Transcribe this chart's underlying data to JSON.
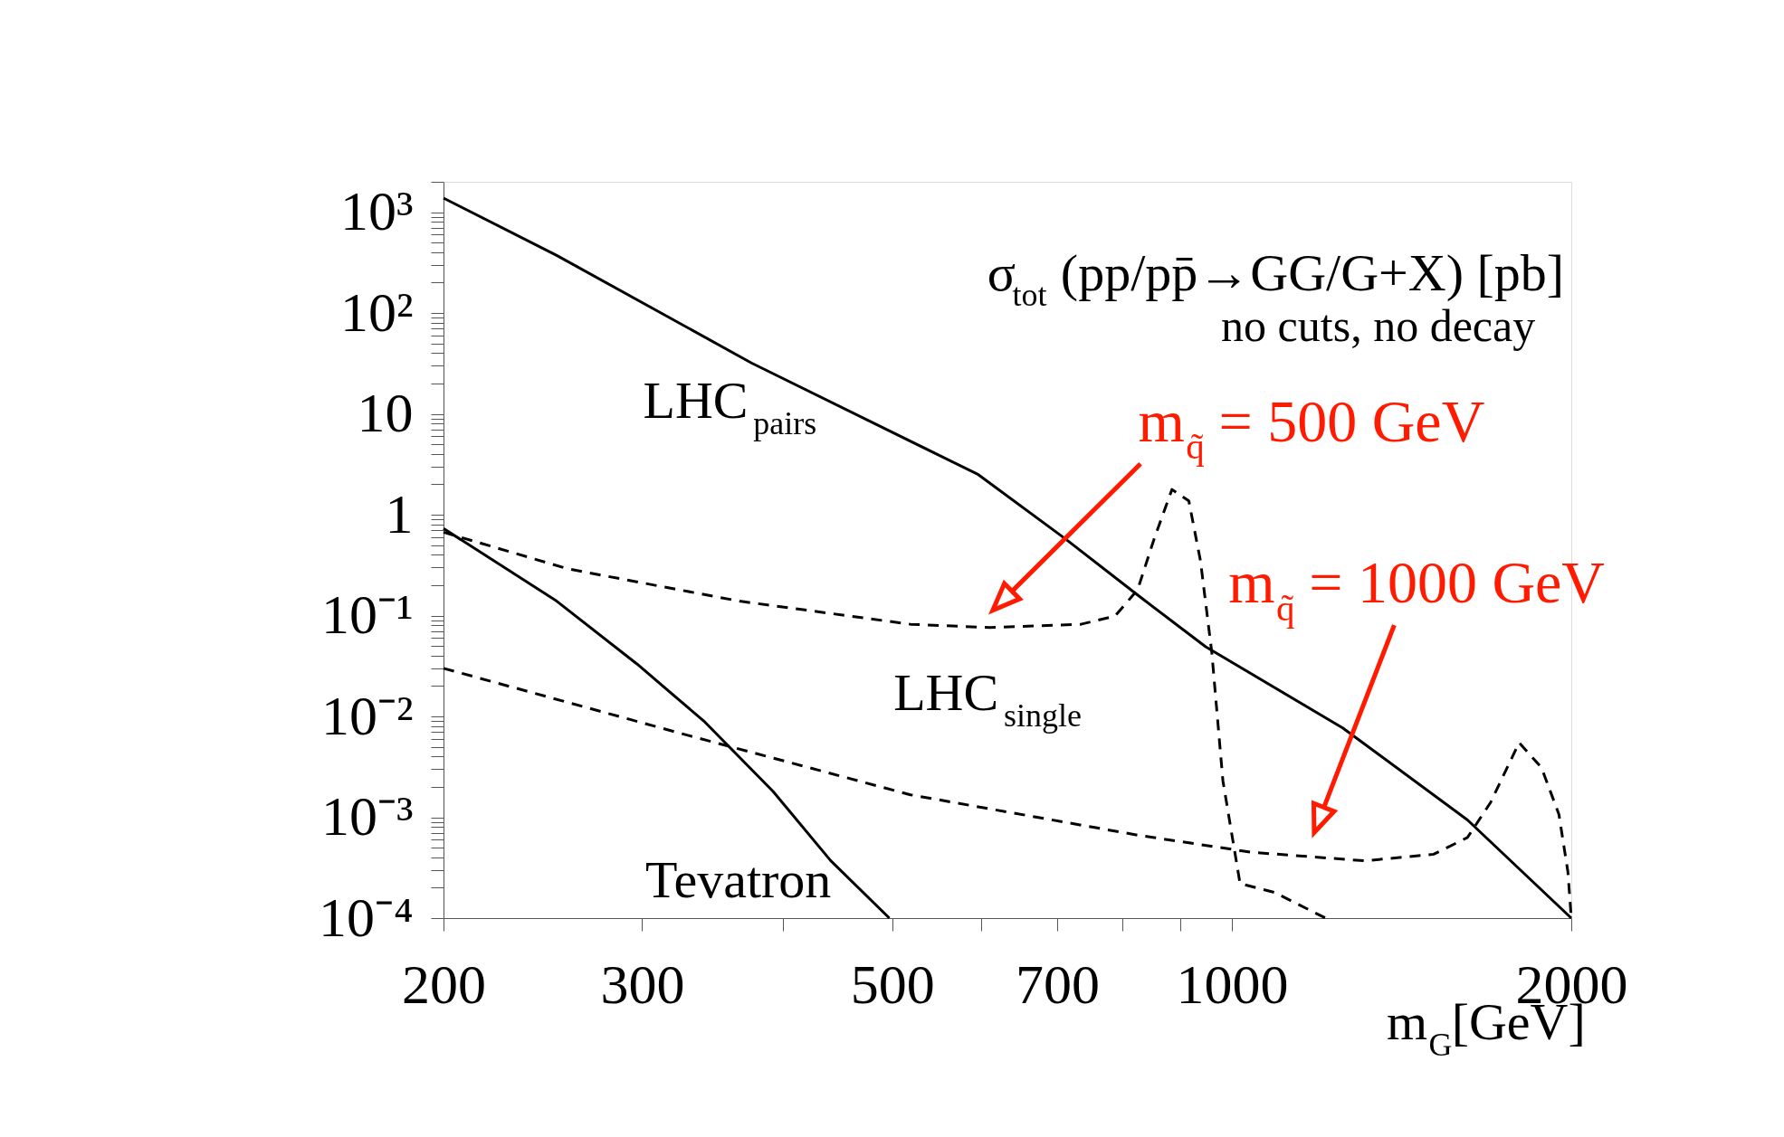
{
  "chart_data": {
    "type": "line",
    "log": "xy",
    "xlabel": "m$_{G}$[GeV]",
    "xlim": [
      200,
      2000
    ],
    "xticks": [
      200,
      300,
      {
        "value": 400,
        "label": null
      },
      500,
      {
        "value": 600,
        "label": null
      },
      700,
      {
        "value": 800,
        "label": null
      },
      {
        "value": 900,
        "label": null
      },
      1000,
      2000
    ],
    "ylim": [
      0.0001,
      2000
    ],
    "yticks": [
      {
        "value": 0.0001,
        "label": "10⁻⁴"
      },
      {
        "value": 0.0002,
        "label": null
      },
      {
        "value": 0.0003,
        "label": null
      },
      {
        "value": 0.0004,
        "label": null
      },
      {
        "value": 0.0005,
        "label": null
      },
      {
        "value": 0.0006,
        "label": null
      },
      {
        "value": 0.0007,
        "label": null
      },
      {
        "value": 0.0008,
        "label": null
      },
      {
        "value": 0.0009,
        "label": null
      },
      {
        "value": 0.001,
        "label": "10⁻³"
      },
      {
        "value": 0.002,
        "label": null
      },
      {
        "value": 0.003,
        "label": null
      },
      {
        "value": 0.004,
        "label": null
      },
      {
        "value": 0.005,
        "label": null
      },
      {
        "value": 0.006,
        "label": null
      },
      {
        "value": 0.007,
        "label": null
      },
      {
        "value": 0.008,
        "label": null
      },
      {
        "value": 0.009,
        "label": null
      },
      {
        "value": 0.01,
        "label": "10⁻²"
      },
      {
        "value": 0.02,
        "label": null
      },
      {
        "value": 0.03,
        "label": null
      },
      {
        "value": 0.04,
        "label": null
      },
      {
        "value": 0.05,
        "label": null
      },
      {
        "value": 0.06,
        "label": null
      },
      {
        "value": 0.07,
        "label": null
      },
      {
        "value": 0.08,
        "label": null
      },
      {
        "value": 0.09,
        "label": null
      },
      {
        "value": 0.1,
        "label": "10⁻¹"
      },
      {
        "value": 0.2,
        "label": null
      },
      {
        "value": 0.3,
        "label": null
      },
      {
        "value": 0.4,
        "label": null
      },
      {
        "value": 0.5,
        "label": null
      },
      {
        "value": 0.6,
        "label": null
      },
      {
        "value": 0.7,
        "label": null
      },
      {
        "value": 0.8,
        "label": null
      },
      {
        "value": 0.9,
        "label": null
      },
      1,
      {
        "value": 2,
        "label": null
      },
      {
        "value": 3,
        "label": null
      },
      {
        "value": 4,
        "label": null
      },
      {
        "value": 5,
        "label": null
      },
      {
        "value": 6,
        "label": null
      },
      {
        "value": 7,
        "label": null
      },
      {
        "value": 8,
        "label": null
      },
      {
        "value": 9,
        "label": null
      },
      10,
      {
        "value": 20,
        "label": null
      },
      {
        "value": 30,
        "label": null
      },
      {
        "value": 40,
        "label": null
      },
      {
        "value": 50,
        "label": null
      },
      {
        "value": 60,
        "label": null
      },
      {
        "value": 70,
        "label": null
      },
      {
        "value": 80,
        "label": null
      },
      {
        "value": 90,
        "label": null
      },
      {
        "value": 100,
        "label": "10²"
      },
      {
        "value": 200,
        "label": null
      },
      {
        "value": 300,
        "label": null
      },
      {
        "value": 400,
        "label": null
      },
      {
        "value": 500,
        "label": null
      },
      {
        "value": 600,
        "label": null
      },
      {
        "value": 700,
        "label": null
      },
      {
        "value": 800,
        "label": null
      },
      {
        "value": 900,
        "label": null
      },
      {
        "value": 1000,
        "label": "10³"
      },
      {
        "value": 2000,
        "label": null
      }
    ],
    "series": [
      {
        "name": "LHC$_{pairs}$",
        "color": "#000000",
        "line_style": "solid",
        "x": [
          200,
          252,
          375,
          596,
          710,
          825,
          948,
          1254,
          1618,
          2000
        ],
        "values": [
          1380,
          373,
          32,
          2.5,
          0.59,
          0.16,
          0.049,
          0.0077,
          0.00094,
          0.0001
        ]
      },
      {
        "name": "Tevatron",
        "color": "#000000",
        "line_style": "solid",
        "x": [
          200,
          252,
          297,
          341,
          392,
          441,
          497
        ],
        "values": [
          0.73,
          0.139,
          0.033,
          0.0088,
          0.0018,
          0.00037,
          0.0001
        ]
      },
      {
        "color": "#000000",
        "line_style": "dashed",
        "x": [
          200,
          258,
          366,
          519,
          610,
          735,
          788,
          825,
          854,
          885,
          916,
          938,
          960,
          982,
          1017,
          1091,
          1211
        ],
        "values": [
          0.67,
          0.29,
          0.139,
          0.082,
          0.076,
          0.082,
          0.099,
          0.18,
          0.59,
          1.78,
          1.37,
          0.35,
          0.043,
          0.0023,
          0.00022,
          0.00018,
          0.0001
        ]
      },
      {
        "color": "#000000",
        "line_style": "dashed",
        "x": [
          200,
          326,
          519,
          825,
          1041,
          1312,
          1510,
          1618,
          1696,
          1798,
          1882,
          1950,
          1986,
          2000
        ],
        "values": [
          0.03,
          0.0067,
          0.00167,
          0.000665,
          0.00045,
          0.00037,
          0.00043,
          0.00063,
          0.0014,
          0.0055,
          0.0031,
          0.00107,
          0.00029,
          0.0001
        ]
      }
    ],
    "annotations": [
      "σ$_{tot}$ (pp/pp̄→GG/G+X) [pb]",
      "no cuts, no decay",
      "LHC$_{single}$",
      "m$_{q̃}$ = 500 GeV",
      "m$_{q̃}$ = 1000 GeV"
    ]
  }
}
